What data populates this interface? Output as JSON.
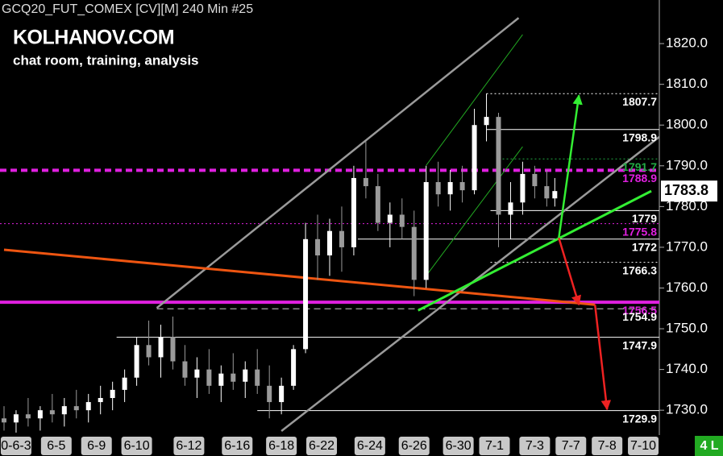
{
  "chart_data": {
    "type": "candlestick",
    "title": "GCQ20_FUT_COMEX [CV][M]  240 Min  #25",
    "watermark": "KOLHANOV.COM",
    "subtitle": "chat room, training, analysis",
    "corner_label": "4 L",
    "up_color": "#ffffff",
    "down_color": "#9a9a9a",
    "x": [
      1,
      4,
      7,
      10,
      13,
      16,
      19,
      22,
      25,
      28,
      31,
      34,
      37,
      40,
      43,
      46,
      49,
      52,
      55,
      58,
      61,
      64,
      67,
      70,
      73,
      76,
      79,
      82,
      85,
      88,
      91,
      94,
      97,
      100,
      103,
      106,
      109,
      112,
      115,
      118,
      121,
      124,
      127,
      130,
      133,
      136,
      138
    ],
    "open": [
      1728,
      1727,
      1729,
      1728,
      1730,
      1729,
      1731,
      1730,
      1732,
      1733,
      1735,
      1738,
      1746,
      1743,
      1748,
      1742,
      1738,
      1740,
      1736,
      1739,
      1737,
      1740,
      1736,
      1732,
      1736,
      1745,
      1772,
      1768,
      1774,
      1770,
      1787,
      1785,
      1776,
      1778,
      1775,
      1762,
      1786,
      1783,
      1786,
      1784,
      1800,
      1802,
      1778,
      1781,
      1788,
      1785,
      1782
    ],
    "high": [
      1731,
      1730,
      1733,
      1731,
      1734,
      1733,
      1735,
      1734,
      1736,
      1737,
      1740,
      1748,
      1752,
      1751,
      1753,
      1746,
      1743,
      1745,
      1741,
      1744,
      1742,
      1745,
      1741,
      1738,
      1746,
      1776,
      1778,
      1777,
      1780,
      1790,
      1796,
      1788,
      1781,
      1782,
      1779,
      1790,
      1791,
      1789,
      1790,
      1804,
      1807.7,
      1803,
      1786,
      1791,
      1790,
      1789,
      1787
    ],
    "low": [
      1725,
      1724.5,
      1726,
      1725,
      1727,
      1726,
      1728,
      1727,
      1729,
      1730,
      1732,
      1736,
      1741,
      1738,
      1740,
      1736,
      1733,
      1734,
      1732,
      1735,
      1733,
      1734,
      1728,
      1729,
      1735,
      1744,
      1762,
      1763,
      1764,
      1768,
      1782,
      1774,
      1770,
      1772,
      1758,
      1760,
      1780,
      1779,
      1781,
      1783,
      1796,
      1770,
      1772,
      1778,
      1782,
      1780,
      1780
    ],
    "close": [
      1727,
      1729,
      1728,
      1730,
      1729,
      1731,
      1730,
      1732,
      1733,
      1735,
      1738,
      1746,
      1743,
      1748,
      1742,
      1738,
      1740,
      1736,
      1739,
      1737,
      1740,
      1736,
      1732,
      1736,
      1745,
      1772,
      1768,
      1774,
      1770,
      1787,
      1785,
      1776,
      1778,
      1775,
      1762,
      1786,
      1783,
      1786,
      1784,
      1800,
      1802,
      1778,
      1781,
      1788,
      1785,
      1782,
      1783.8
    ],
    "xlim": [
      0,
      164
    ],
    "xticks": [
      {
        "value": 4,
        "label": "0-6-3"
      },
      {
        "value": 14,
        "label": "6-5"
      },
      {
        "value": 24,
        "label": "6-9"
      },
      {
        "value": 34,
        "label": "6-10"
      },
      {
        "value": 47,
        "label": "6-12"
      },
      {
        "value": 59,
        "label": "6-16"
      },
      {
        "value": 70,
        "label": "6-18"
      },
      {
        "value": 80,
        "label": "6-22"
      },
      {
        "value": 92,
        "label": "6-24"
      },
      {
        "value": 103,
        "label": "6-26"
      },
      {
        "value": 114,
        "label": "6-30"
      },
      {
        "value": 123,
        "label": "7-1"
      },
      {
        "value": 133,
        "label": "7-3"
      },
      {
        "value": 142,
        "label": "7-7"
      },
      {
        "value": 151,
        "label": "7-8"
      },
      {
        "value": 160,
        "label": "7-10"
      }
    ],
    "ylim": [
      1724.3,
      1830.7
    ],
    "yticks": [
      {
        "value": 1730,
        "label": "1730.0"
      },
      {
        "value": 1740,
        "label": "1740.0"
      },
      {
        "value": 1750,
        "label": "1750.0"
      },
      {
        "value": 1760,
        "label": "1760.0"
      },
      {
        "value": 1770,
        "label": "1770.0"
      },
      {
        "value": 1780,
        "label": "1780.0"
      },
      {
        "value": 1790,
        "label": "1790.0"
      },
      {
        "value": 1800,
        "label": "1800.0"
      },
      {
        "value": 1810,
        "label": "1810.0"
      },
      {
        "value": 1820,
        "label": "1820.0"
      }
    ],
    "last_price": 1783.8,
    "levels": [
      {
        "value": 1807.7,
        "from": 121,
        "color": "#ffffff",
        "style": "dotted",
        "label_color": "#ffffff"
      },
      {
        "value": 1798.9,
        "from": 121,
        "color": "#ffffff",
        "style": "solid",
        "label_color": "#ffffff"
      },
      {
        "value": 1791.7,
        "from": 124,
        "color": "#22aa44",
        "style": "dotted",
        "label_color": "#22aa44"
      },
      {
        "value": 1788.9,
        "from": 0,
        "color": "#e020e0",
        "style": "dashed",
        "label_color": "#e020e0"
      },
      {
        "value": 1779.0,
        "from": 122,
        "color": "#ffffff",
        "style": "solid",
        "label_color": "#ffffff"
      },
      {
        "value": 1775.8,
        "from": 0,
        "color": "#e020e0",
        "style": "dotted",
        "label_color": "#e020e0"
      },
      {
        "value": 1772.0,
        "from": 89,
        "color": "#ffffff",
        "style": "solid",
        "label_color": "#ffffff"
      },
      {
        "value": 1766.3,
        "from": 122,
        "color": "#ffffff",
        "style": "dotted",
        "label_color": "#ffffff"
      },
      {
        "value": 1756.5,
        "from": 0,
        "color": "#e020e0",
        "style": "thick",
        "label_color": "#e020e0"
      },
      {
        "value": 1754.9,
        "from": 39,
        "color": "#cccccc",
        "style": "dashed",
        "label_color": "#ffffff"
      },
      {
        "value": 1747.9,
        "from": 29,
        "color": "#ffffff",
        "style": "solid",
        "label_color": "#ffffff"
      },
      {
        "value": 1729.9,
        "from": 64,
        "color": "#ffffff",
        "style": "solid",
        "label_color": "#ffffff"
      }
    ],
    "trendlines": [
      {
        "x": [
          39,
          129
        ],
        "y": [
          1755.1,
          1826.3
        ],
        "color": "#9a9a9a",
        "width": 2.5
      },
      {
        "x": [
          70,
          164
        ],
        "y": [
          1724.9,
          1797.1
        ],
        "color": "#9a9a9a",
        "width": 2.5
      },
      {
        "x": [
          106,
          130
        ],
        "y": [
          1790.1,
          1822.2
        ],
        "color": "#22aa22",
        "width": 1
      },
      {
        "x": [
          106,
          130
        ],
        "y": [
          1763.0,
          1794.7
        ],
        "color": "#22aa22",
        "width": 1
      },
      {
        "x": [
          1,
          148
        ],
        "y": [
          1769.4,
          1755.9
        ],
        "color": "#ee5511",
        "width": 3
      },
      {
        "x": [
          104,
          162
        ],
        "y": [
          1754.5,
          1783.8
        ],
        "color": "#33ee33",
        "width": 3
      }
    ],
    "arrows": [
      {
        "x": [
          139,
          144
        ],
        "y": [
          1772.3,
          1807.3
        ],
        "color": "#33ee33"
      },
      {
        "x": [
          139,
          144
        ],
        "y": [
          1772.3,
          1755.9
        ],
        "color": "#ee2222"
      },
      {
        "x": [
          148,
          151
        ],
        "y": [
          1755.9,
          1730.2
        ],
        "color": "#ee2222"
      }
    ]
  }
}
